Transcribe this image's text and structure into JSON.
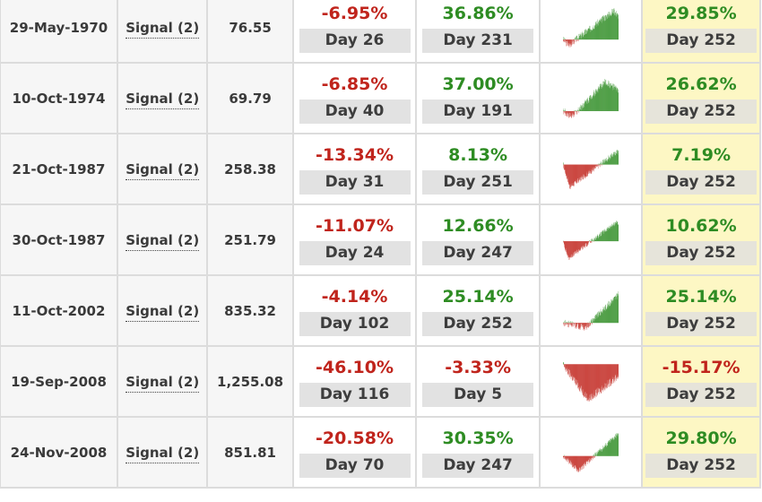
{
  "colors": {
    "positive": "#2e8c23",
    "negative": "#c0241c",
    "highlight": "#fdf7c4"
  },
  "rows": [
    {
      "date": "29-May-1970",
      "signal": "Signal (2)",
      "price": "76.55",
      "drawdown": {
        "pct": "-6.95%",
        "day": "Day 26"
      },
      "peak": {
        "pct": "36.86%",
        "day": "Day 231"
      },
      "final": {
        "pct": "29.85%",
        "day": "Day 252"
      }
    },
    {
      "date": "10-Oct-1974",
      "signal": "Signal (2)",
      "price": "69.79",
      "drawdown": {
        "pct": "-6.85%",
        "day": "Day 40"
      },
      "peak": {
        "pct": "37.00%",
        "day": "Day 191"
      },
      "final": {
        "pct": "26.62%",
        "day": "Day 252"
      }
    },
    {
      "date": "21-Oct-1987",
      "signal": "Signal (2)",
      "price": "258.38",
      "drawdown": {
        "pct": "-13.34%",
        "day": "Day 31"
      },
      "peak": {
        "pct": "8.13%",
        "day": "Day 251"
      },
      "final": {
        "pct": "7.19%",
        "day": "Day 252"
      }
    },
    {
      "date": "30-Oct-1987",
      "signal": "Signal (2)",
      "price": "251.79",
      "drawdown": {
        "pct": "-11.07%",
        "day": "Day 24"
      },
      "peak": {
        "pct": "12.66%",
        "day": "Day 247"
      },
      "final": {
        "pct": "10.62%",
        "day": "Day 252"
      }
    },
    {
      "date": "11-Oct-2002",
      "signal": "Signal (2)",
      "price": "835.32",
      "drawdown": {
        "pct": "-4.14%",
        "day": "Day 102"
      },
      "peak": {
        "pct": "25.14%",
        "day": "Day 252"
      },
      "final": {
        "pct": "25.14%",
        "day": "Day 252"
      }
    },
    {
      "date": "19-Sep-2008",
      "signal": "Signal (2)",
      "price": "1,255.08",
      "drawdown": {
        "pct": "-46.10%",
        "day": "Day 116"
      },
      "peak": {
        "pct": "-3.33%",
        "day": "Day 5"
      },
      "final": {
        "pct": "-15.17%",
        "day": "Day 252"
      }
    },
    {
      "date": "24-Nov-2008",
      "signal": "Signal (2)",
      "price": "851.81",
      "drawdown": {
        "pct": "-20.58%",
        "day": "Day 70"
      },
      "peak": {
        "pct": "30.35%",
        "day": "Day 247"
      },
      "final": {
        "pct": "29.80%",
        "day": "Day 252"
      }
    }
  ]
}
